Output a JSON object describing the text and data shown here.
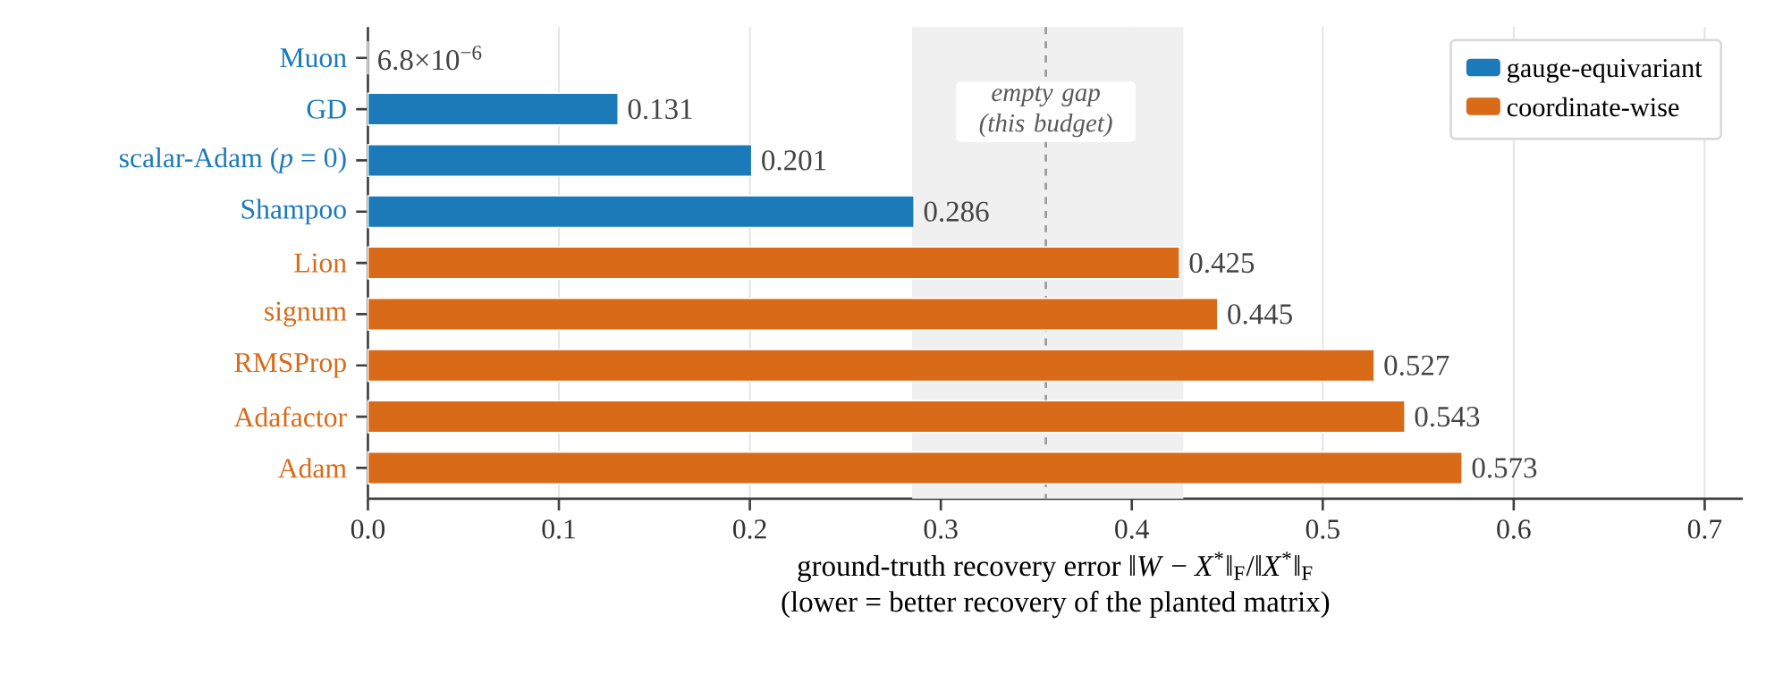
{
  "chart_data": {
    "type": "bar",
    "orientation": "horizontal",
    "categories": [
      "Muon",
      "GD",
      "scalar-Adam (*p* = 0)",
      "Shampoo",
      "Lion",
      "signum",
      "RMSProp",
      "Adafactor",
      "Adam"
    ],
    "series": [
      {
        "name": "gauge-equivariant",
        "color": "#1b7ab8",
        "values": [
          6.8e-06,
          0.131,
          0.201,
          0.286,
          null,
          null,
          null,
          null,
          null
        ],
        "value_labels": [
          "6.8×10$^{−6}$",
          "0.131",
          "0.201",
          "0.286",
          null,
          null,
          null,
          null,
          null
        ]
      },
      {
        "name": "coordinate-wise",
        "color": "#d86a18",
        "values": [
          null,
          null,
          null,
          null,
          0.425,
          0.445,
          0.527,
          0.543,
          0.573
        ],
        "value_labels": [
          null,
          null,
          null,
          null,
          "0.425",
          "0.445",
          "0.527",
          "0.543",
          "0.573"
        ]
      }
    ],
    "xlim": [
      0,
      0.72
    ],
    "xticks": [
      {
        "value": 0,
        "label": "0.0"
      },
      0.1,
      0.2,
      0.3,
      0.4,
      0.5,
      0.6,
      0.7
    ],
    "xlabel": "ground-truth recovery error ‖*W* − *X*$^{*}$‖$_{F}$/‖*X*$^{*}$‖$_{F}$",
    "annotations": [
      "(lower = better recovery of the planted matrix)"
    ],
    "ref_lines": [
      {
        "axis": "x",
        "value": 0.355,
        "label": "empty gap (this budget)",
        "color": "#999999",
        "line_style": "dashed"
      }
    ],
    "bands": [
      {
        "axis": "x",
        "from": 0.285,
        "to": 0.427,
        "color": "#f0f0f0"
      }
    ],
    "grid": "x",
    "legend": "top right"
  }
}
